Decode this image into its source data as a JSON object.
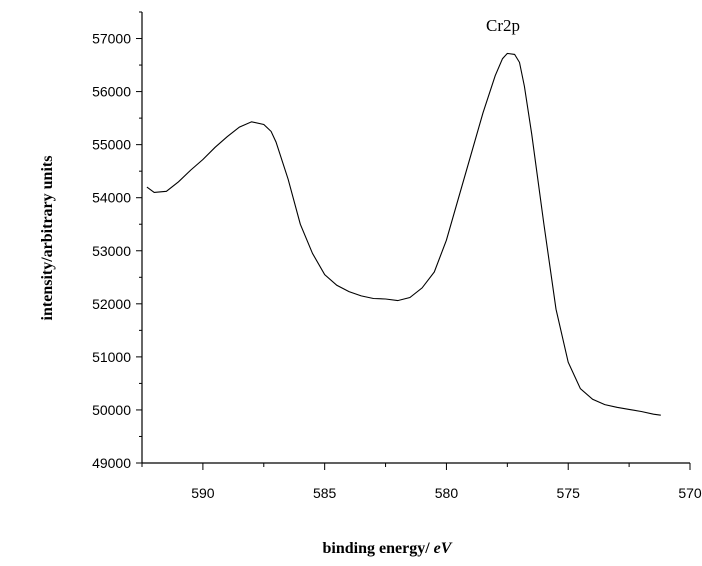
{
  "chart_data": {
    "type": "line",
    "title": "",
    "annotation": "Cr2p",
    "xlabel": "binding energy/ ",
    "xlabel_unit": "eV",
    "ylabel": "intensity/arbitrary  units",
    "xlim": [
      592.5,
      570
    ],
    "ylim": [
      49000,
      57500
    ],
    "x_reversed": true,
    "grid": false,
    "legend": "none",
    "x_ticks": [
      "590",
      "585",
      "580",
      "575",
      "570"
    ],
    "y_ticks": [
      "49000",
      "50000",
      "51000",
      "52000",
      "53000",
      "54000",
      "55000",
      "56000",
      "57000"
    ],
    "series": [
      {
        "color": "#000000",
        "x": [
          592.3,
          592.0,
          591.5,
          591.0,
          590.5,
          590.0,
          589.5,
          589.0,
          588.5,
          588.0,
          587.5,
          587.2,
          587.0,
          586.5,
          586.0,
          585.5,
          585.0,
          584.5,
          584.0,
          583.5,
          583.0,
          582.5,
          582.0,
          581.5,
          581.0,
          580.5,
          580.0,
          579.5,
          579.0,
          578.5,
          578.0,
          577.7,
          577.5,
          577.2,
          577.0,
          576.8,
          576.5,
          576.0,
          575.5,
          575.0,
          574.5,
          574.0,
          573.5,
          573.0,
          572.5,
          572.0,
          571.5,
          571.2
        ],
        "y": [
          54200,
          54100,
          54120,
          54300,
          54520,
          54720,
          54950,
          55150,
          55330,
          55430,
          55380,
          55250,
          55050,
          54350,
          53500,
          52950,
          52550,
          52350,
          52230,
          52150,
          52100,
          52090,
          52060,
          52120,
          52300,
          52600,
          53200,
          54000,
          54800,
          55600,
          56300,
          56620,
          56720,
          56700,
          56550,
          56100,
          55200,
          53500,
          51900,
          50900,
          50400,
          50200,
          50100,
          50050,
          50010,
          49970,
          49920,
          49900
        ]
      }
    ]
  }
}
